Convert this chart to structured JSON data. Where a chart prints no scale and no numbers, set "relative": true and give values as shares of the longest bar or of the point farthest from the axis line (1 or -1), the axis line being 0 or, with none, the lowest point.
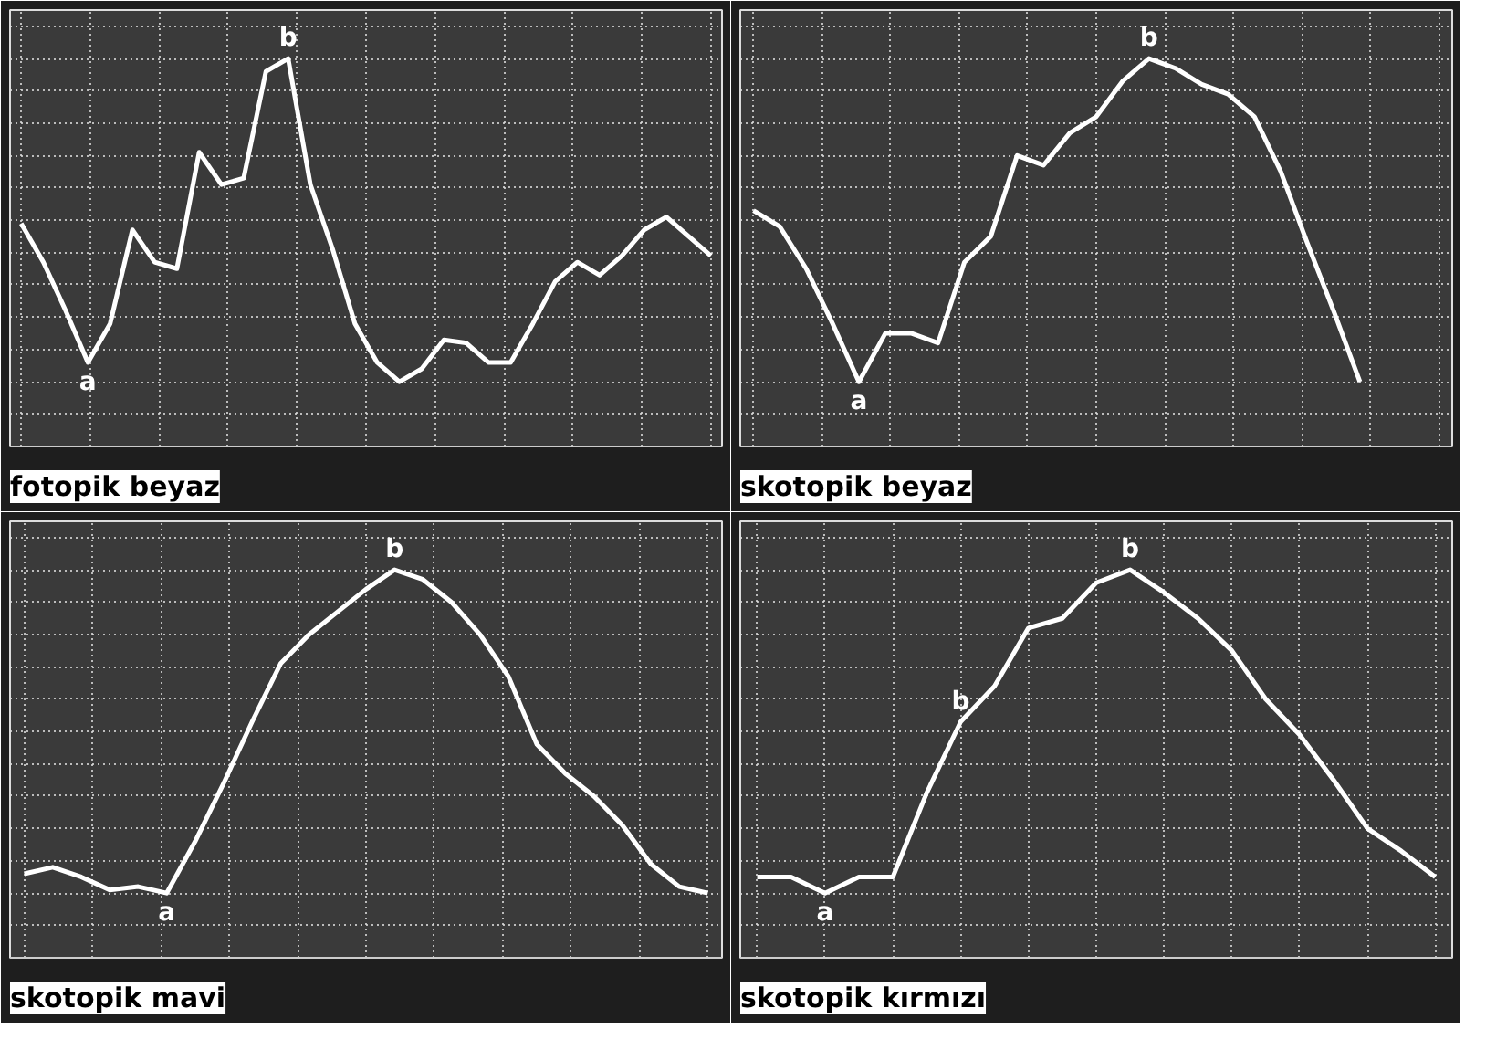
{
  "chart_data": [
    {
      "type": "line",
      "title": "fotopik beyaz",
      "relative": true,
      "tick_labels": false,
      "grid": true,
      "categories": [
        null,
        null,
        null,
        null,
        null,
        null,
        null,
        null,
        null,
        null,
        null,
        null,
        null,
        null,
        null,
        null,
        null,
        null,
        null,
        null,
        null,
        null,
        null,
        null,
        null,
        null,
        null,
        null,
        null,
        null,
        null,
        null
      ],
      "series": [
        {
          "color": "#ffffff",
          "values": [
            0.49,
            0.37,
            0.22,
            0.06,
            0.18,
            0.47,
            0.37,
            0.35,
            0.71,
            0.61,
            0.63,
            0.96,
            1,
            0.61,
            0.41,
            0.18,
            0.06,
            0,
            0.04,
            0.13,
            0.12,
            0.06,
            0.06,
            0.18,
            0.31,
            0.37,
            0.33,
            0.39,
            0.47,
            0.51,
            0.45,
            0.39
          ]
        }
      ],
      "annotations": [
        {
          "text": "a",
          "y": 0.06
        },
        {
          "text": "b",
          "y": 1
        }
      ]
    },
    {
      "type": "line",
      "title": "skotopik beyaz",
      "relative": true,
      "tick_labels": false,
      "grid": true,
      "categories": [
        null,
        null,
        null,
        null,
        null,
        null,
        null,
        null,
        null,
        null,
        null,
        null,
        null,
        null,
        null,
        null,
        null,
        null,
        null,
        null,
        null,
        null,
        null,
        null,
        null,
        null,
        null
      ],
      "series": [
        {
          "color": "#ffffff",
          "values": [
            0.53,
            0.48,
            0.35,
            0.18,
            0,
            0.15,
            0.15,
            0.12,
            0.37,
            0.45,
            0.7,
            0.67,
            0.77,
            0.82,
            0.93,
            1,
            0.97,
            0.92,
            0.89,
            0.82,
            0.65,
            0.43,
            0.22,
            0,
            null,
            null,
            null
          ]
        }
      ],
      "annotations": [
        {
          "text": "a",
          "y": 0
        },
        {
          "text": "b",
          "y": 1
        }
      ]
    },
    {
      "type": "line",
      "title": "skotopik mavi",
      "relative": true,
      "tick_labels": false,
      "grid": true,
      "categories": [
        null,
        null,
        null,
        null,
        null,
        null,
        null,
        null,
        null,
        null,
        null,
        null,
        null,
        null,
        null,
        null,
        null,
        null,
        null,
        null,
        null,
        null,
        null,
        null,
        null
      ],
      "series": [
        {
          "color": "#ffffff",
          "values": [
            0.06,
            0.08,
            0.05,
            0.01,
            0.02,
            0,
            0.16,
            0.34,
            0.53,
            0.71,
            0.8,
            0.87,
            0.94,
            1,
            0.97,
            0.9,
            0.8,
            0.67,
            0.46,
            0.37,
            0.3,
            0.21,
            0.09,
            0.02,
            0
          ]
        }
      ],
      "annotations": [
        {
          "text": "a",
          "y": 0
        },
        {
          "text": "b",
          "y": 1
        }
      ]
    },
    {
      "type": "line",
      "title": "skotopik kırmızı",
      "relative": true,
      "tick_labels": false,
      "grid": true,
      "categories": [
        null,
        null,
        null,
        null,
        null,
        null,
        null,
        null,
        null,
        null,
        null,
        null,
        null,
        null,
        null,
        null,
        null,
        null,
        null,
        null,
        null
      ],
      "series": [
        {
          "color": "#ffffff",
          "values": [
            0.05,
            0.05,
            0,
            0.05,
            0.05,
            0.31,
            0.53,
            0.64,
            0.82,
            0.85,
            0.96,
            1,
            0.93,
            0.85,
            0.75,
            0.6,
            0.49,
            0.35,
            0.2,
            0.13,
            0.05
          ]
        }
      ],
      "annotations": [
        {
          "text": "a",
          "y": 0
        },
        {
          "text": "b",
          "y": 0.53
        },
        {
          "text": "b",
          "y": 1
        }
      ]
    }
  ]
}
